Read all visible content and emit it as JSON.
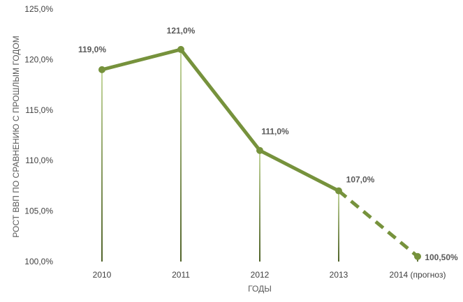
{
  "chart_data": {
    "type": "line",
    "categories": [
      "2010",
      "2011",
      "2012",
      "2013",
      "2014 (прогноз)"
    ],
    "values": [
      119.0,
      121.0,
      111.0,
      107.0,
      100.5
    ],
    "data_labels": [
      "119,0%",
      "121,0%",
      "111,0%",
      "107,0%",
      "100,50%"
    ],
    "forecast_from_index": 3,
    "title": "",
    "xlabel": "ГОДЫ",
    "ylabel": "РОСТ ВВП ПО СРАВНЕНИЮ С ПРОШЛЫМ ГОДОМ",
    "ylim": [
      100,
      125
    ],
    "y_ticks": [
      "100,0%",
      "105,0%",
      "110,0%",
      "115,0%",
      "120,0%",
      "125,0%"
    ],
    "grid": false,
    "drop_lines": true,
    "legend": "none",
    "colors": {
      "line": "#76923C",
      "drop_line_top": "#C4D79B",
      "drop_line_bottom": "#4F6228"
    }
  }
}
